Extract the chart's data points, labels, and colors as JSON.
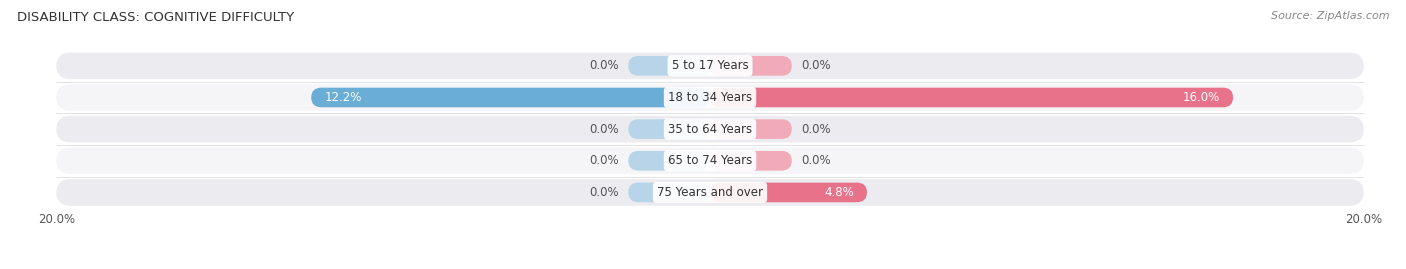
{
  "title": "DISABILITY CLASS: COGNITIVE DIFFICULTY",
  "source": "Source: ZipAtlas.com",
  "categories": [
    "5 to 17 Years",
    "18 to 34 Years",
    "35 to 64 Years",
    "65 to 74 Years",
    "75 Years and over"
  ],
  "male_values": [
    0.0,
    12.2,
    0.0,
    0.0,
    0.0
  ],
  "female_values": [
    0.0,
    16.0,
    0.0,
    0.0,
    4.8
  ],
  "male_color": "#6aaed6",
  "female_color": "#e8728a",
  "male_color_light": "#b8d4e8",
  "female_color_light": "#f0aab8",
  "row_color_odd": "#ebebf0",
  "row_color_even": "#f5f5f8",
  "x_min": -20.0,
  "x_max": 20.0,
  "stub_size": 2.5,
  "title_fontsize": 9.5,
  "source_fontsize": 8,
  "label_fontsize": 8.5,
  "category_fontsize": 8.5
}
